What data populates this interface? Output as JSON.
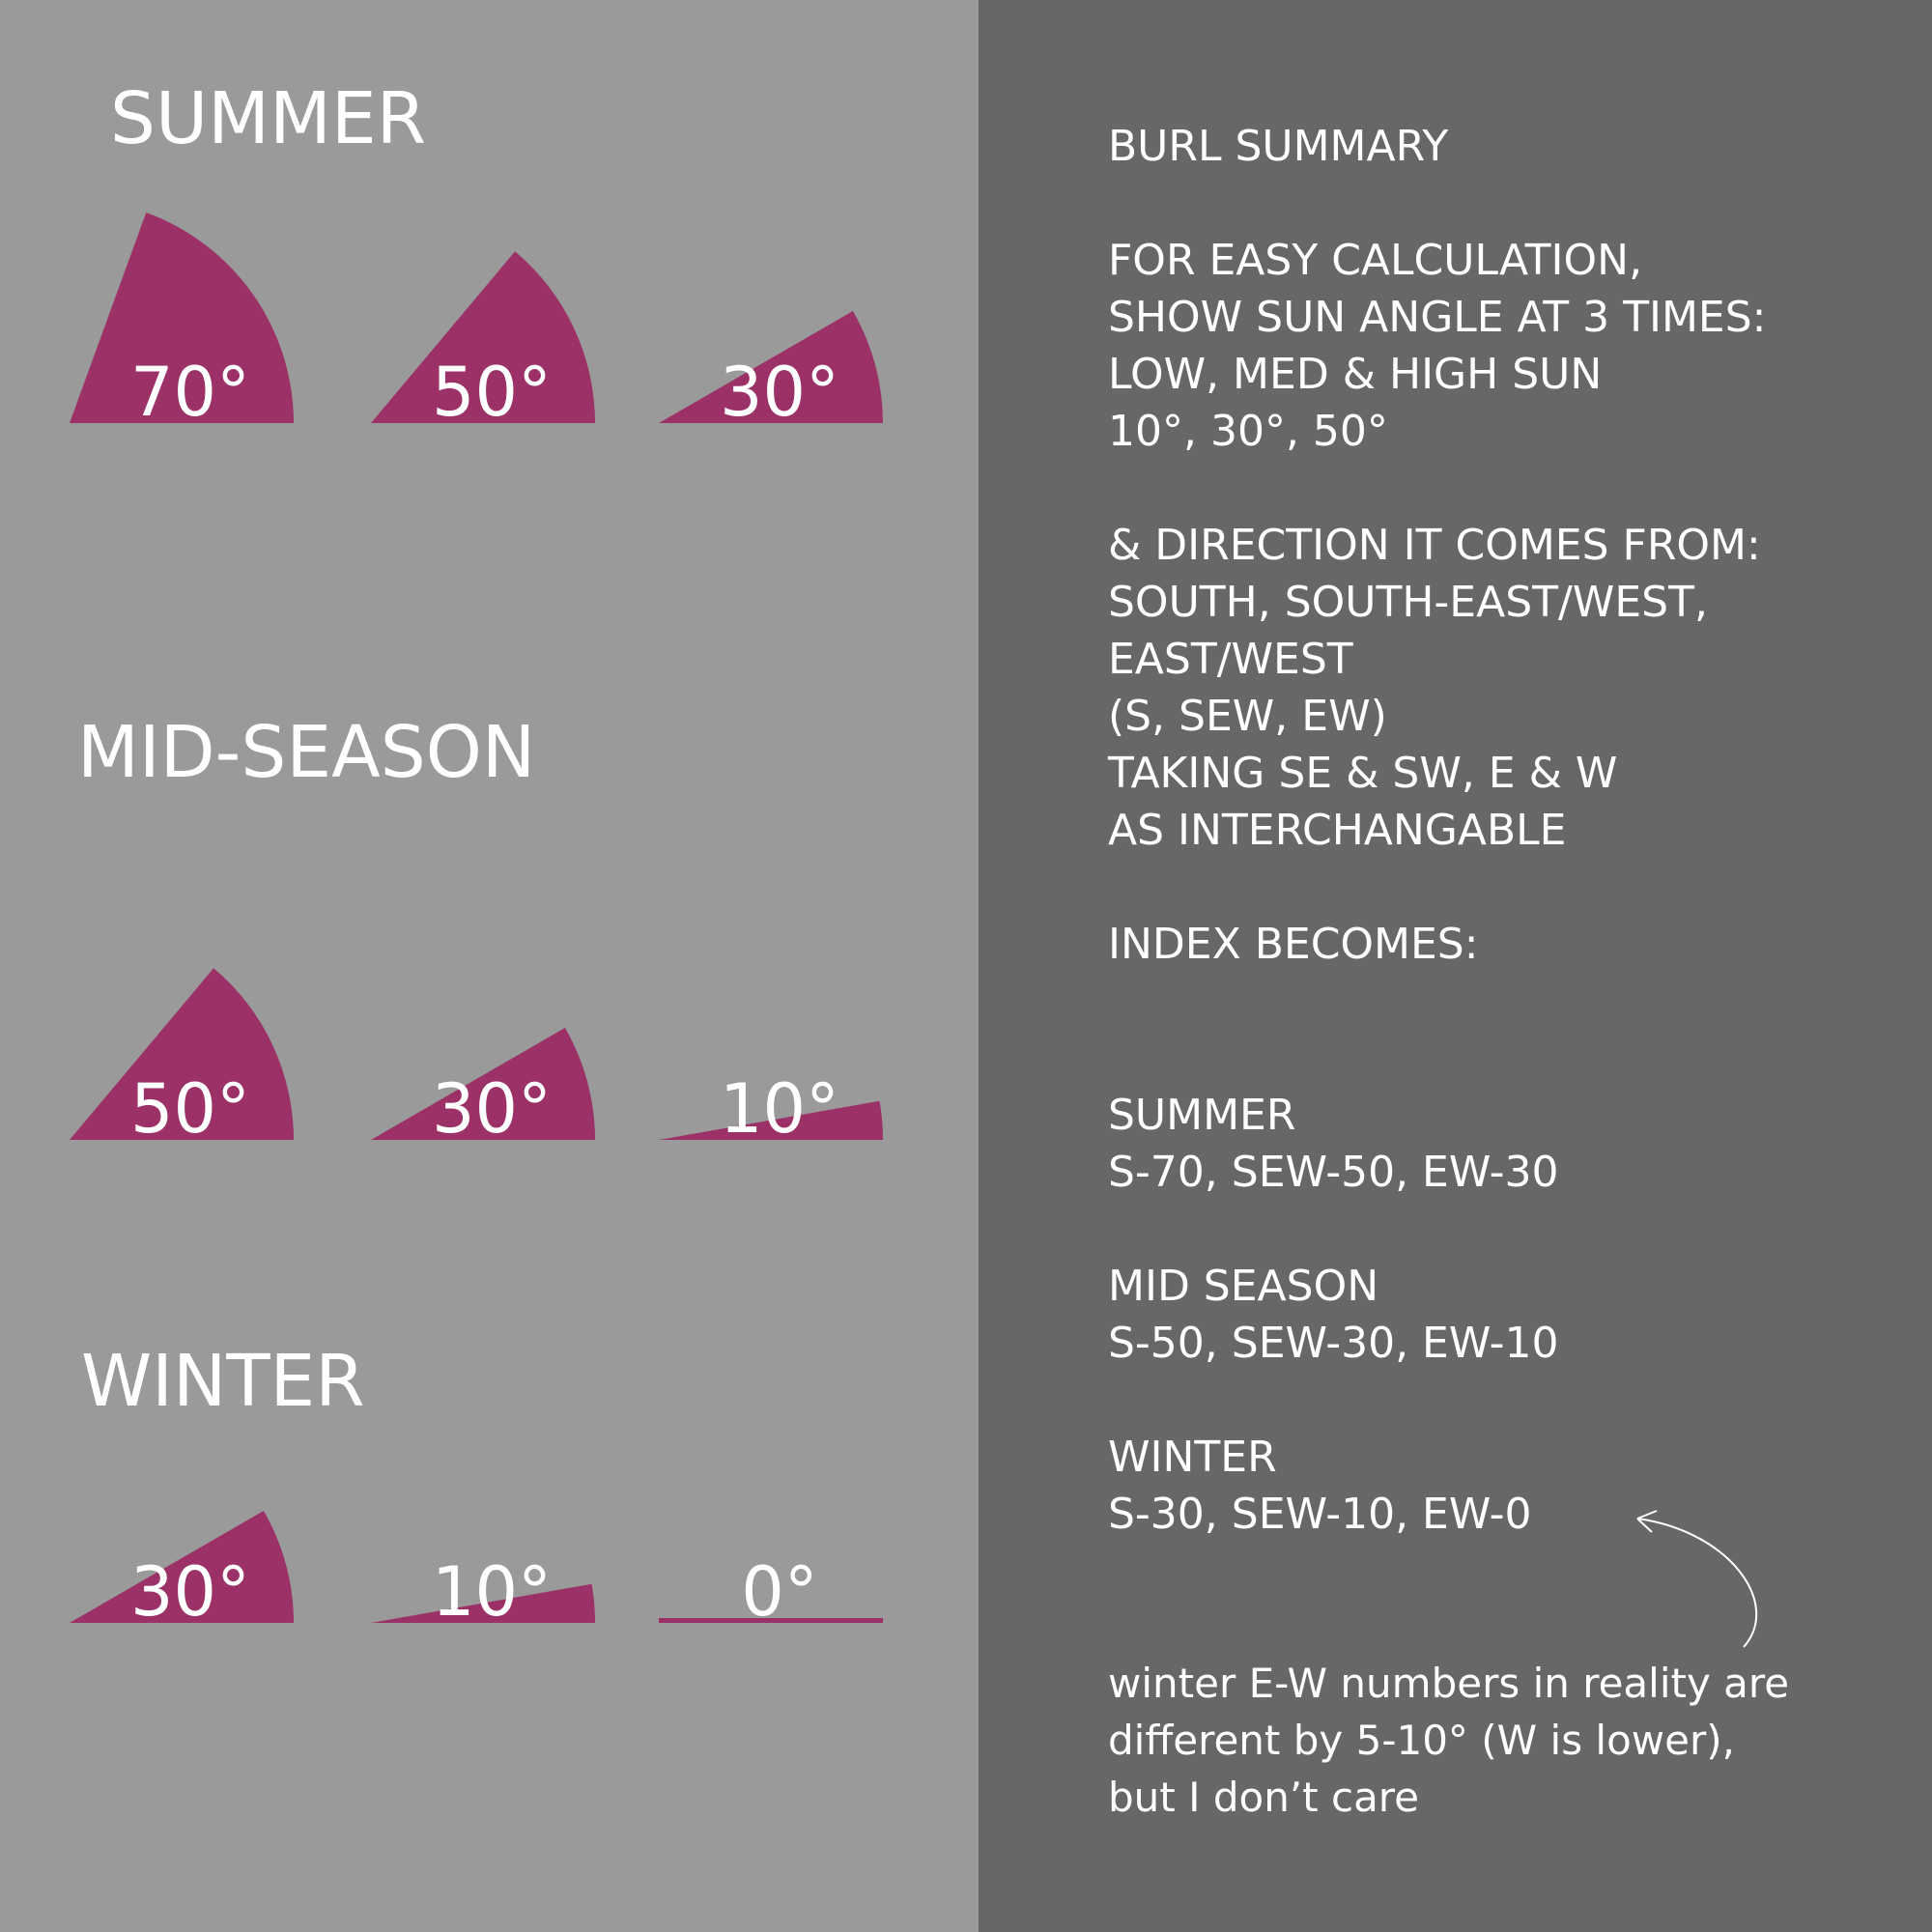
{
  "colors": {
    "left_background": "#9a9a9a",
    "right_background": "#676767",
    "wedge_fill": "#9b3166",
    "text": "#ffffff"
  },
  "seasons": [
    {
      "title": "SUMMER",
      "angles": [
        {
          "degrees": 70,
          "label": "70°"
        },
        {
          "degrees": 50,
          "label": "50°"
        },
        {
          "degrees": 30,
          "label": "30°"
        }
      ]
    },
    {
      "title": "MID-SEASON",
      "angles": [
        {
          "degrees": 50,
          "label": "50°"
        },
        {
          "degrees": 30,
          "label": "30°"
        },
        {
          "degrees": 10,
          "label": "10°"
        }
      ]
    },
    {
      "title": "WINTER",
      "angles": [
        {
          "degrees": 30,
          "label": "30°"
        },
        {
          "degrees": 10,
          "label": "10°"
        },
        {
          "degrees": 0,
          "label": "0°"
        }
      ]
    }
  ],
  "summary": {
    "heading": "BURL SUMMARY",
    "intro": [
      "FOR EASY CALCULATION,",
      "SHOW SUN ANGLE AT 3 TIMES:",
      "LOW, MED & HIGH SUN",
      "10°, 30°, 50°"
    ],
    "direction": [
      "& DIRECTION IT COMES FROM:",
      "SOUTH, SOUTH-EAST/WEST,",
      "EAST/WEST",
      "(S, SEW, EW)",
      "TAKING SE & SW, E & W",
      "AS INTERCHANGABLE"
    ],
    "index_heading": "INDEX BECOMES:",
    "index": [
      {
        "season": "SUMMER",
        "values": "S-70, SEW-50, EW-30"
      },
      {
        "season": "MID SEASON",
        "values": "S-50, SEW-30, EW-10"
      },
      {
        "season": "WINTER",
        "values": "S-30, SEW-10, EW-0"
      }
    ],
    "note": [
      "winter E-W numbers in reality are",
      "different by 5-10° (W is lower),",
      "but I don’t care"
    ]
  }
}
